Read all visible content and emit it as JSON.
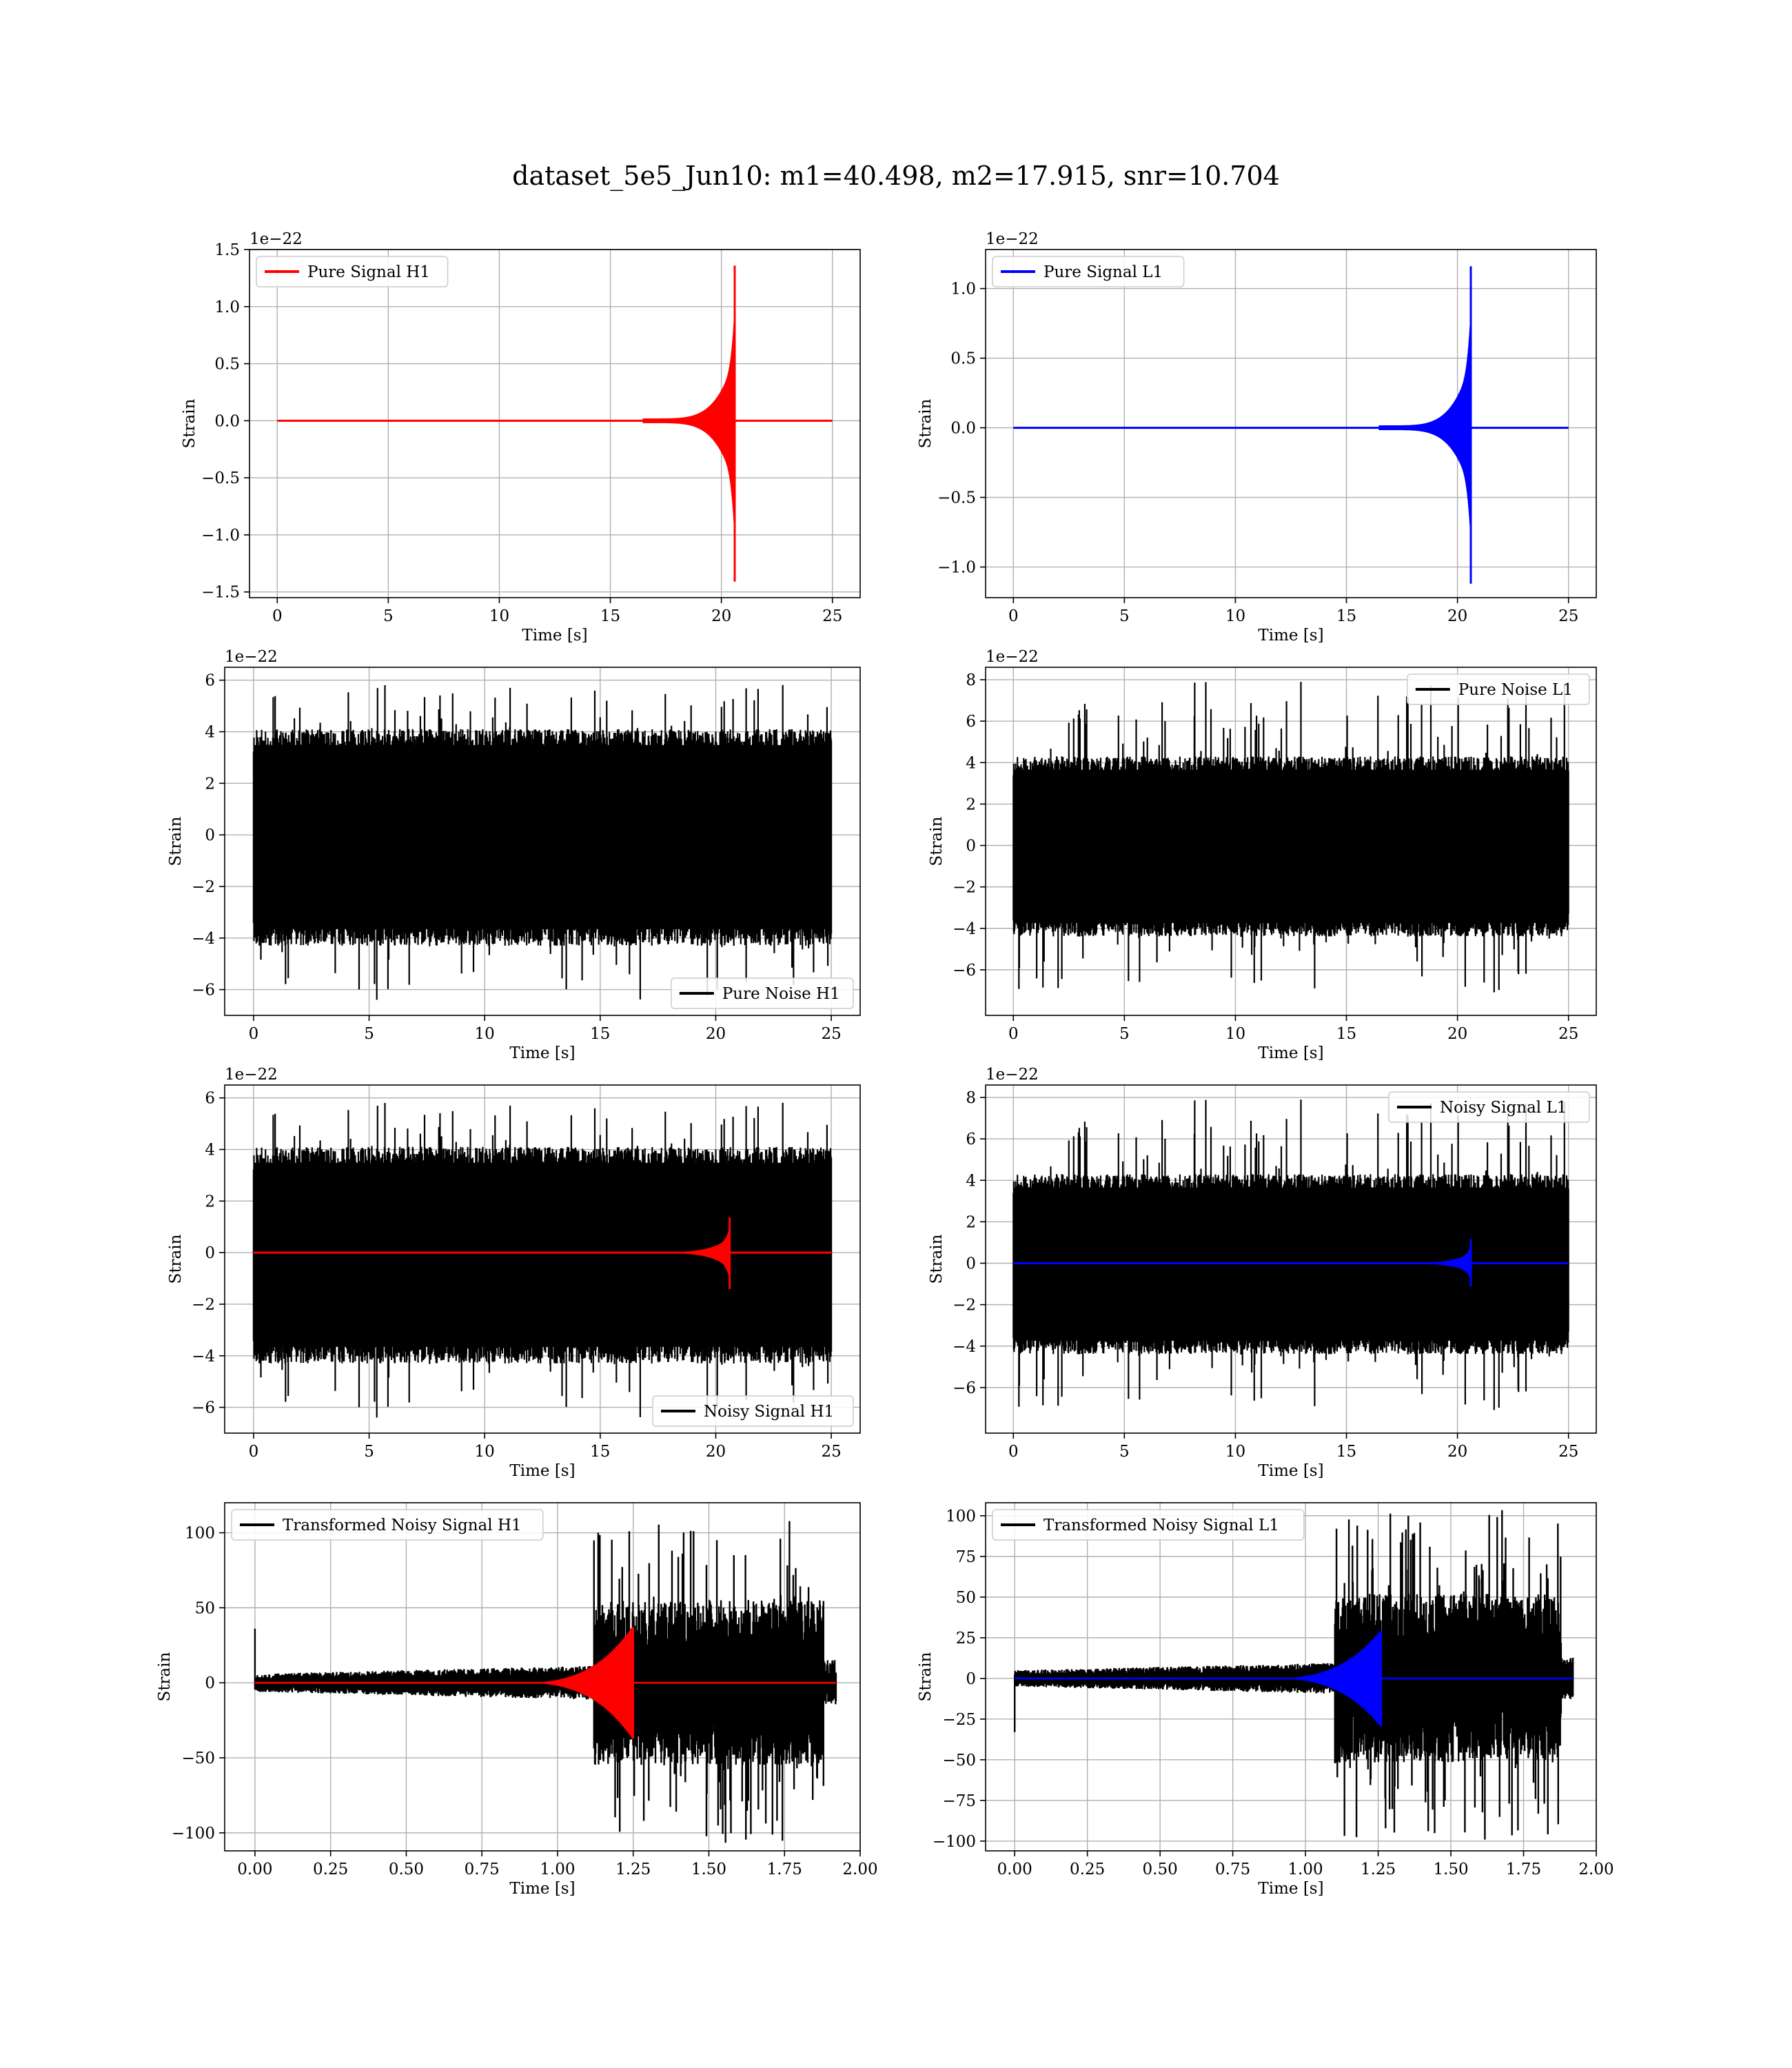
{
  "figure_title": "dataset_5e5_Jun10: m1=40.498, m2=17.915, snr=10.704",
  "chart_data": [
    {
      "id": "pure-signal-h1",
      "type": "line",
      "title": "",
      "xlabel": "Time [s]",
      "ylabel": "Strain",
      "offset_label": "1e−22",
      "xlim": [
        -1.25,
        26.25
      ],
      "ylim": [
        -1.55,
        1.5
      ],
      "xticks": [
        0,
        5,
        10,
        15,
        20,
        25
      ],
      "xticklabels": [
        "0",
        "5",
        "10",
        "15",
        "20",
        "25"
      ],
      "yticks": [
        -1.5,
        -1.0,
        -0.5,
        0.0,
        0.5,
        1.0,
        1.5
      ],
      "yticklabels": [
        "−1.5",
        "−1.0",
        "−0.5",
        "0.0",
        "0.5",
        "1.0",
        "1.5"
      ],
      "grid": true,
      "legend_loc": "top-left",
      "series": [
        {
          "name": "Pure Signal H1",
          "color": "#ff0000",
          "kind": "chirp",
          "x_start": 0,
          "x_end": 25,
          "merger": 20.6,
          "onset": 16.5,
          "peak_pos": 1.36,
          "peak_neg": 1.41
        }
      ]
    },
    {
      "id": "pure-signal-l1",
      "type": "line",
      "title": "",
      "xlabel": "Time [s]",
      "ylabel": "Strain",
      "offset_label": "1e−22",
      "xlim": [
        -1.25,
        26.25
      ],
      "ylim": [
        -1.22,
        1.28
      ],
      "xticks": [
        0,
        5,
        10,
        15,
        20,
        25
      ],
      "xticklabels": [
        "0",
        "5",
        "10",
        "15",
        "20",
        "25"
      ],
      "yticks": [
        -1.0,
        -0.5,
        0.0,
        0.5,
        1.0
      ],
      "yticklabels": [
        "−1.0",
        "−0.5",
        "0.0",
        "0.5",
        "1.0"
      ],
      "grid": true,
      "legend_loc": "top-left",
      "series": [
        {
          "name": "Pure Signal L1",
          "color": "#0000ff",
          "kind": "chirp",
          "x_start": 0,
          "x_end": 25,
          "merger": 20.6,
          "onset": 16.5,
          "peak_pos": 1.16,
          "peak_neg": 1.12
        }
      ]
    },
    {
      "id": "pure-noise-h1",
      "type": "line",
      "title": "",
      "xlabel": "Time [s]",
      "ylabel": "Strain",
      "offset_label": "1e−22",
      "xlim": [
        -1.25,
        26.25
      ],
      "ylim": [
        -7.0,
        6.5
      ],
      "xticks": [
        0,
        5,
        10,
        15,
        20,
        25
      ],
      "xticklabels": [
        "0",
        "5",
        "10",
        "15",
        "20",
        "25"
      ],
      "yticks": [
        -6,
        -4,
        -2,
        0,
        2,
        4,
        6
      ],
      "yticklabels": [
        "−6",
        "−4",
        "−2",
        "0",
        "2",
        "4",
        "6"
      ],
      "grid": true,
      "legend_loc": "bottom-right",
      "series": [
        {
          "name": "Pure Noise H1",
          "color": "#000000",
          "kind": "noise",
          "x_start": 0,
          "x_end": 25,
          "band_pos": 4.1,
          "band_neg": 4.3,
          "spike_max": 6.0,
          "spike_min": -6.4,
          "seed": 11
        }
      ]
    },
    {
      "id": "pure-noise-l1",
      "type": "line",
      "title": "",
      "xlabel": "Time [s]",
      "ylabel": "Strain",
      "offset_label": "1e−22",
      "xlim": [
        -1.25,
        26.25
      ],
      "ylim": [
        -8.2,
        8.6
      ],
      "xticks": [
        0,
        5,
        10,
        15,
        20,
        25
      ],
      "xticklabels": [
        "0",
        "5",
        "10",
        "15",
        "20",
        "25"
      ],
      "yticks": [
        -6,
        -4,
        -2,
        0,
        2,
        4,
        6,
        8
      ],
      "yticklabels": [
        "−6",
        "−4",
        "−2",
        "0",
        "2",
        "4",
        "6",
        "8"
      ],
      "grid": true,
      "legend_loc": "top-right",
      "series": [
        {
          "name": "Pure Noise L1",
          "color": "#000000",
          "kind": "noise",
          "x_start": 0,
          "x_end": 25,
          "band_pos": 4.3,
          "band_neg": 4.4,
          "spike_max": 7.9,
          "spike_min": -7.1,
          "seed": 23
        }
      ]
    },
    {
      "id": "noisy-signal-h1",
      "type": "line",
      "title": "",
      "xlabel": "Time [s]",
      "ylabel": "Strain",
      "offset_label": "1e−22",
      "xlim": [
        -1.25,
        26.25
      ],
      "ylim": [
        -7.0,
        6.5
      ],
      "xticks": [
        0,
        5,
        10,
        15,
        20,
        25
      ],
      "xticklabels": [
        "0",
        "5",
        "10",
        "15",
        "20",
        "25"
      ],
      "yticks": [
        -6,
        -4,
        -2,
        0,
        2,
        4,
        6
      ],
      "yticklabels": [
        "−6",
        "−4",
        "−2",
        "0",
        "2",
        "4",
        "6"
      ],
      "grid": true,
      "legend_loc": "bottom-right",
      "series": [
        {
          "name": "Noisy Signal H1",
          "color": "#000000",
          "kind": "noise",
          "x_start": 0,
          "x_end": 25,
          "band_pos": 4.1,
          "band_neg": 4.3,
          "spike_max": 6.0,
          "spike_min": -6.4,
          "seed": 11
        },
        {
          "name": "",
          "color": "#ff0000",
          "kind": "chirp",
          "x_start": 0,
          "x_end": 25,
          "merger": 20.6,
          "onset": 16.5,
          "peak_pos": 1.36,
          "peak_neg": 1.41
        }
      ]
    },
    {
      "id": "noisy-signal-l1",
      "type": "line",
      "title": "",
      "xlabel": "Time [s]",
      "ylabel": "Strain",
      "offset_label": "1e−22",
      "xlim": [
        -1.25,
        26.25
      ],
      "ylim": [
        -8.2,
        8.6
      ],
      "xticks": [
        0,
        5,
        10,
        15,
        20,
        25
      ],
      "xticklabels": [
        "0",
        "5",
        "10",
        "15",
        "20",
        "25"
      ],
      "yticks": [
        -6,
        -4,
        -2,
        0,
        2,
        4,
        6,
        8
      ],
      "yticklabels": [
        "−6",
        "−4",
        "−2",
        "0",
        "2",
        "4",
        "6",
        "8"
      ],
      "grid": true,
      "legend_loc": "top-right",
      "series": [
        {
          "name": "Noisy Signal L1",
          "color": "#000000",
          "kind": "noise",
          "x_start": 0,
          "x_end": 25,
          "band_pos": 4.3,
          "band_neg": 4.4,
          "spike_max": 7.9,
          "spike_min": -7.1,
          "seed": 23
        },
        {
          "name": "",
          "color": "#0000ff",
          "kind": "chirp",
          "x_start": 0,
          "x_end": 25,
          "merger": 20.6,
          "onset": 16.5,
          "peak_pos": 1.16,
          "peak_neg": 1.12
        }
      ]
    },
    {
      "id": "transformed-noisy-signal-h1",
      "type": "line",
      "title": "",
      "xlabel": "Time [s]",
      "ylabel": "Strain",
      "offset_label": "",
      "xlim": [
        -0.1,
        2.0
      ],
      "ylim": [
        -112,
        120
      ],
      "xticks": [
        0.0,
        0.25,
        0.5,
        0.75,
        1.0,
        1.25,
        1.5,
        1.75,
        2.0
      ],
      "xticklabels": [
        "0.00",
        "0.25",
        "0.50",
        "0.75",
        "1.00",
        "1.25",
        "1.50",
        "1.75",
        "2.00"
      ],
      "yticks": [
        -100,
        -50,
        0,
        50,
        100
      ],
      "yticklabels": [
        "−100",
        "−50",
        "0",
        "50",
        "100"
      ],
      "grid": true,
      "legend_loc": "top-left",
      "series": [
        {
          "name": "Transformed Noisy Signal H1",
          "color": "#000000",
          "kind": "tnoise",
          "x_start": 0,
          "x_end": 1.92,
          "burst_start": 1.12,
          "burst_end": 1.88,
          "pre_amp": 6,
          "burst_amp": 55,
          "spike_max": 108,
          "spike_min": -109,
          "first_spike": 36,
          "seed": 37
        },
        {
          "name": "",
          "color": "#ff0000",
          "kind": "tchirp",
          "x_start": 0,
          "x_end": 1.92,
          "onset": 0.85,
          "merger": 1.25,
          "peak_pos": 38,
          "peak_neg": 38
        }
      ]
    },
    {
      "id": "transformed-noisy-signal-l1",
      "type": "line",
      "title": "",
      "xlabel": "Time [s]",
      "ylabel": "Strain",
      "offset_label": "",
      "xlim": [
        -0.1,
        2.0
      ],
      "ylim": [
        -106,
        108
      ],
      "xticks": [
        0.0,
        0.25,
        0.5,
        0.75,
        1.0,
        1.25,
        1.5,
        1.75,
        2.0
      ],
      "xticklabels": [
        "0.00",
        "0.25",
        "0.50",
        "0.75",
        "1.00",
        "1.25",
        "1.50",
        "1.75",
        "2.00"
      ],
      "yticks": [
        -100,
        -75,
        -50,
        -25,
        0,
        25,
        50,
        75,
        100
      ],
      "yticklabels": [
        "−100",
        "−75",
        "−50",
        "−25",
        "0",
        "25",
        "50",
        "75",
        "100"
      ],
      "grid": true,
      "legend_loc": "top-left",
      "series": [
        {
          "name": "Transformed Noisy Signal L1",
          "color": "#000000",
          "kind": "tnoise",
          "x_start": 0,
          "x_end": 1.92,
          "burst_start": 1.1,
          "burst_end": 1.88,
          "pre_amp": 5,
          "burst_amp": 52,
          "spike_max": 104,
          "spike_min": -100,
          "first_spike": -33,
          "seed": 41
        },
        {
          "name": "",
          "color": "#0000ff",
          "kind": "tchirp",
          "x_start": 0,
          "x_end": 1.92,
          "onset": 0.85,
          "merger": 1.26,
          "peak_pos": 30,
          "peak_neg": 30
        }
      ]
    }
  ]
}
